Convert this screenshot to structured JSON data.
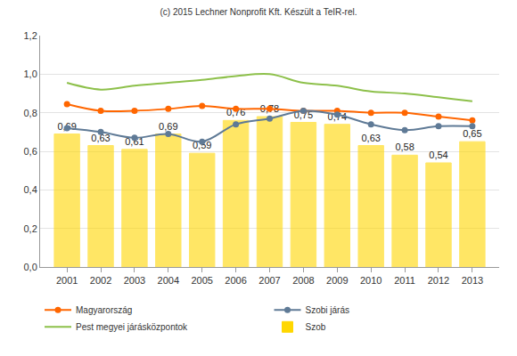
{
  "chart_data": {
    "type": "bar",
    "title": "(c) 2015 Lechner Nonprofit Kft. Készült a TeIR-rel.",
    "categories": [
      "2001",
      "2002",
      "2003",
      "2004",
      "2005",
      "2006",
      "2007",
      "2008",
      "2009",
      "2010",
      "2011",
      "2012",
      "2013"
    ],
    "series": [
      {
        "name": "Magyarország",
        "type": "line",
        "color": "#ff6600",
        "marker": "circle",
        "line_style": "smooth",
        "values": [
          0.845,
          0.81,
          0.81,
          0.82,
          0.835,
          0.82,
          0.82,
          0.81,
          0.81,
          0.8,
          0.8,
          0.78,
          0.76
        ]
      },
      {
        "name": "Szobi járás",
        "type": "line",
        "color": "#5f7a96",
        "marker": "circle",
        "line_style": "smooth",
        "values": [
          0.72,
          0.7,
          0.67,
          0.69,
          0.65,
          0.74,
          0.77,
          0.81,
          0.79,
          0.74,
          0.71,
          0.73,
          0.73
        ]
      },
      {
        "name": "Pest megyei járásközpontok",
        "type": "line",
        "color": "#8dc04a",
        "marker": "none",
        "line_style": "smooth",
        "values": [
          0.955,
          0.92,
          0.94,
          0.955,
          0.97,
          0.99,
          1.0,
          0.955,
          0.94,
          0.91,
          0.9,
          0.88,
          0.86
        ]
      },
      {
        "name": "Szob",
        "type": "bar",
        "color": "#ffd700",
        "data_labels": true,
        "values": [
          0.69,
          0.63,
          0.61,
          0.69,
          0.59,
          0.76,
          0.78,
          0.75,
          0.74,
          0.63,
          0.58,
          0.54,
          0.65
        ],
        "value_labels": [
          "0,69",
          "0,63",
          "0,61",
          "0,69",
          "0,59",
          "0,76",
          "0,78",
          "0,75",
          "0,74",
          "0,63",
          "0,58",
          "0,54",
          "0,65"
        ]
      }
    ],
    "ylim": [
      0,
      1.2
    ],
    "yticks": [
      {
        "value": 0,
        "label": "0,0"
      },
      {
        "value": 0.2,
        "label": "0,2"
      },
      {
        "value": 0.4,
        "label": "0,4"
      },
      {
        "value": 0.6,
        "label": "0,6"
      },
      {
        "value": 0.8,
        "label": "0,8"
      },
      {
        "value": 1.0,
        "label": "1,0"
      },
      {
        "value": 1.2,
        "label": "1,2"
      }
    ],
    "grid": true,
    "legend": "bottom"
  }
}
